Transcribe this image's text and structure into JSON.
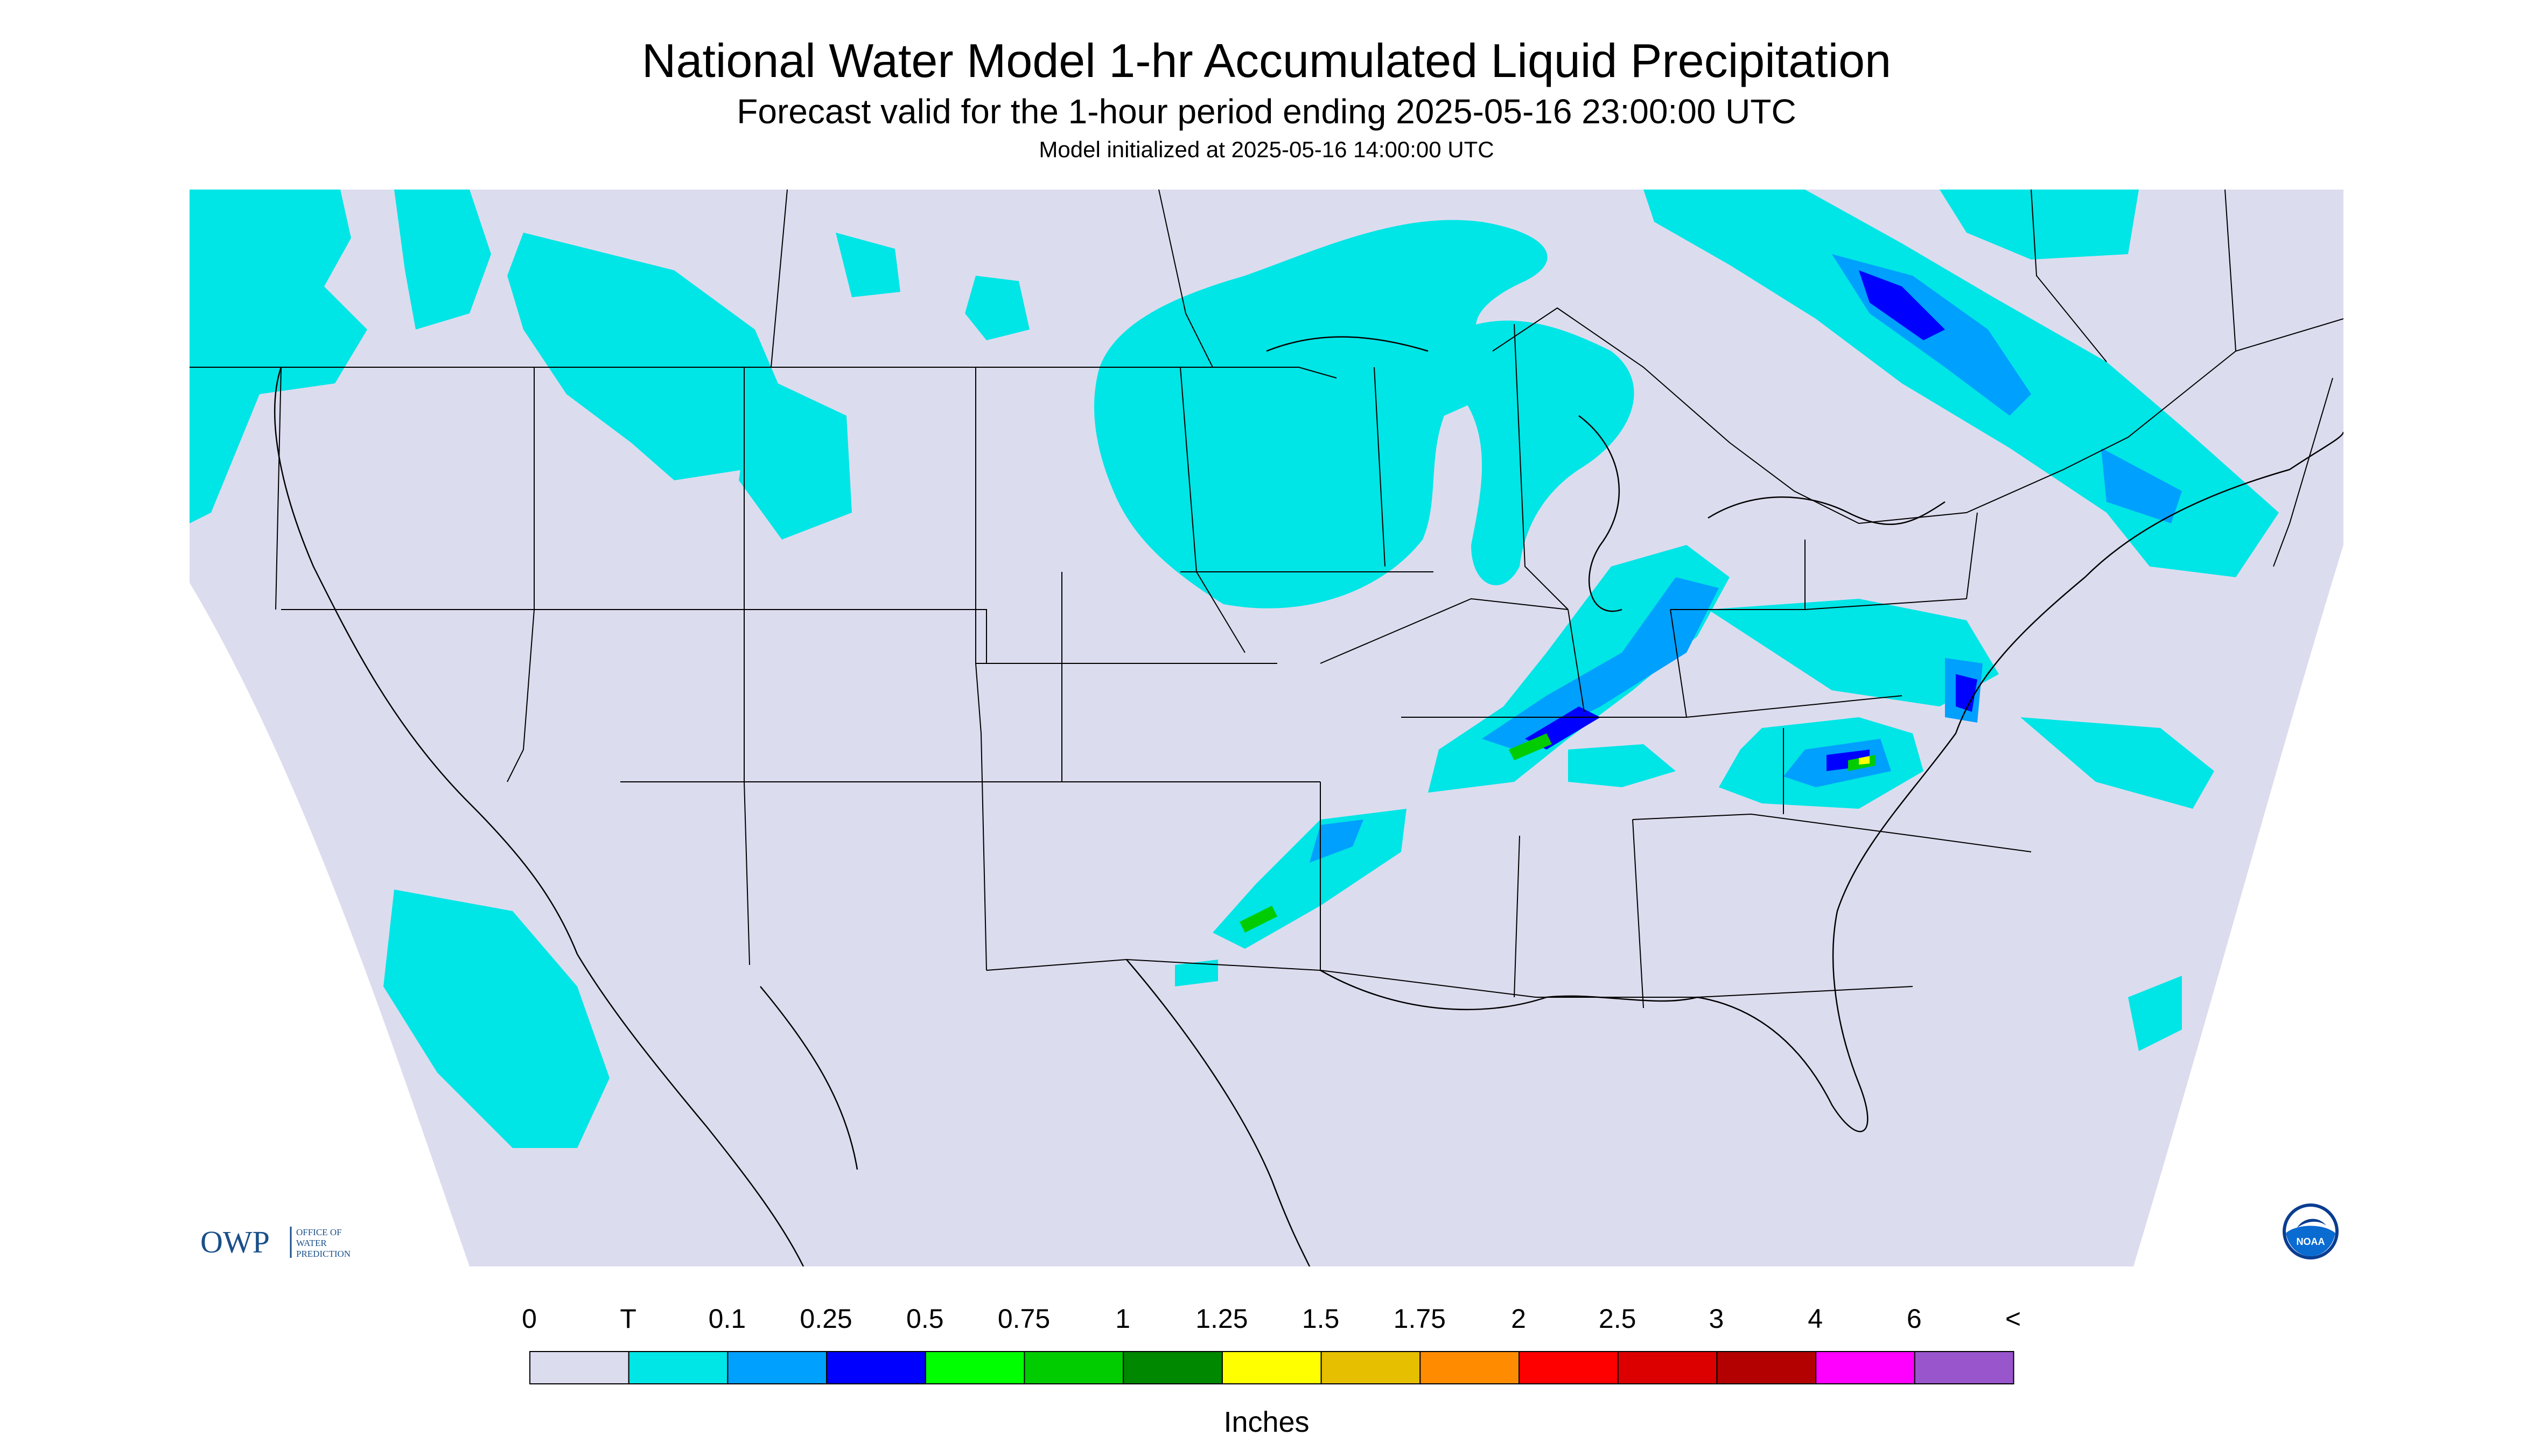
{
  "header": {
    "title": "National Water Model 1-hr Accumulated Liquid Precipitation",
    "subtitle": "Forecast valid for the 1-hour period ending 2025-05-16 23:00:00 UTC",
    "init": "Model initialized at 2025-05-16 14:00:00 UTC"
  },
  "map": {
    "domain_fill": "#dcdcef",
    "outside_fill": "#ffffff",
    "boundary_color": "#000000"
  },
  "logos": {
    "owp_mark": "OWP",
    "owp_name": [
      "OFFICE OF",
      "WATER",
      "PREDICTION"
    ],
    "noaa_mark": "NOAA"
  },
  "legend": {
    "labels": [
      "0",
      "T",
      "0.1",
      "0.25",
      "0.5",
      "0.75",
      "1",
      "1.25",
      "1.5",
      "1.75",
      "2",
      "2.5",
      "3",
      "4",
      "6",
      "<"
    ],
    "colors": [
      "#dcdcef",
      "#00e5e5",
      "#00a0ff",
      "#0000ff",
      "#00ff00",
      "#00cc00",
      "#008800",
      "#ffff00",
      "#e5bf00",
      "#ff8c00",
      "#ff0000",
      "#dd0000",
      "#b30000",
      "#ff00ff",
      "#9955cc"
    ],
    "units": "Inches"
  }
}
